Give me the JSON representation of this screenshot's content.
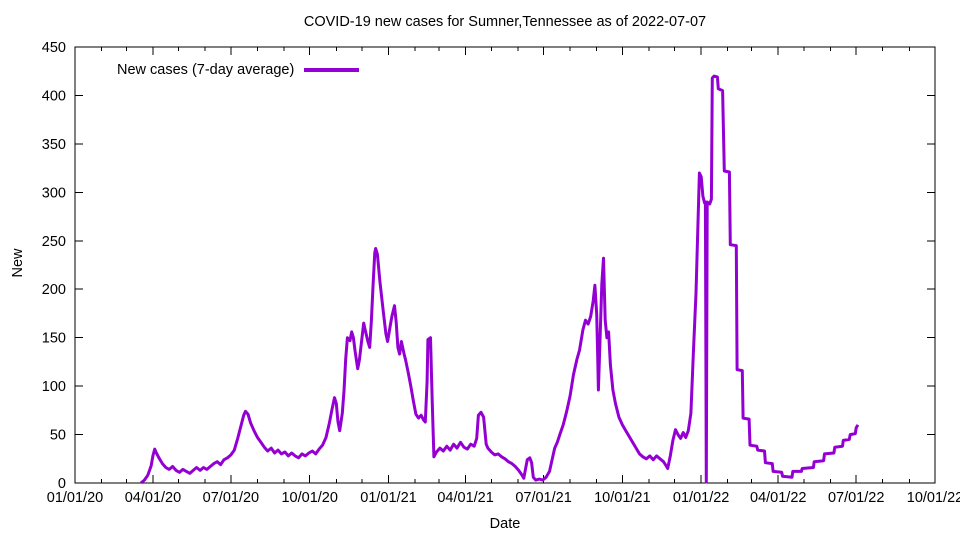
{
  "chart_data": {
    "type": "line",
    "title": "COVID-19 new cases for Sumner,Tennessee as of 2022-07-07",
    "xlabel": "Date",
    "ylabel": "New",
    "grid": false,
    "legend_position": "top-left-inside",
    "x_range": [
      "2020-01-01",
      "2022-10-01"
    ],
    "ylim": [
      0,
      450
    ],
    "y_ticks": [
      {
        "value": 0,
        "label": "0"
      },
      {
        "value": 50,
        "label": "50"
      },
      {
        "value": 100,
        "label": "100"
      },
      {
        "value": 150,
        "label": "150"
      },
      {
        "value": 200,
        "label": "200"
      },
      {
        "value": 250,
        "label": "250"
      },
      {
        "value": 300,
        "label": "300"
      },
      {
        "value": 350,
        "label": "350"
      },
      {
        "value": 400,
        "label": "400"
      },
      {
        "value": 450,
        "label": "450"
      }
    ],
    "x_ticks": [
      {
        "date": "2020-01-01",
        "label": "01/01/20"
      },
      {
        "date": "2020-04-01",
        "label": "04/01/20"
      },
      {
        "date": "2020-07-01",
        "label": "07/01/20"
      },
      {
        "date": "2020-10-01",
        "label": "10/01/20"
      },
      {
        "date": "2021-01-01",
        "label": "01/01/21"
      },
      {
        "date": "2021-04-01",
        "label": "04/01/21"
      },
      {
        "date": "2021-07-01",
        "label": "07/01/21"
      },
      {
        "date": "2021-10-01",
        "label": "10/01/21"
      },
      {
        "date": "2022-01-01",
        "label": "01/01/22"
      },
      {
        "date": "2022-04-01",
        "label": "04/01/22"
      },
      {
        "date": "2022-07-01",
        "label": "07/01/22"
      },
      {
        "date": "2022-10-01",
        "label": "10/01/22"
      }
    ],
    "series": [
      {
        "name": "New cases (7-day average)",
        "color": "#9400d3",
        "points": [
          [
            "2020-03-18",
            0
          ],
          [
            "2020-03-22",
            3
          ],
          [
            "2020-03-26",
            8
          ],
          [
            "2020-03-30",
            18
          ],
          [
            "2020-04-01",
            28
          ],
          [
            "2020-04-03",
            35
          ],
          [
            "2020-04-05",
            31
          ],
          [
            "2020-04-08",
            26
          ],
          [
            "2020-04-12",
            20
          ],
          [
            "2020-04-16",
            16
          ],
          [
            "2020-04-20",
            14
          ],
          [
            "2020-04-24",
            17
          ],
          [
            "2020-04-28",
            13
          ],
          [
            "2020-05-02",
            11
          ],
          [
            "2020-05-06",
            14
          ],
          [
            "2020-05-10",
            12
          ],
          [
            "2020-05-14",
            10
          ],
          [
            "2020-05-18",
            13
          ],
          [
            "2020-05-22",
            16
          ],
          [
            "2020-05-26",
            13
          ],
          [
            "2020-05-30",
            16
          ],
          [
            "2020-06-03",
            14
          ],
          [
            "2020-06-07",
            17
          ],
          [
            "2020-06-11",
            20
          ],
          [
            "2020-06-15",
            22
          ],
          [
            "2020-06-19",
            19
          ],
          [
            "2020-06-23",
            24
          ],
          [
            "2020-06-27",
            26
          ],
          [
            "2020-07-01",
            29
          ],
          [
            "2020-07-05",
            34
          ],
          [
            "2020-07-09",
            46
          ],
          [
            "2020-07-13",
            60
          ],
          [
            "2020-07-16",
            70
          ],
          [
            "2020-07-18",
            74
          ],
          [
            "2020-07-21",
            71
          ],
          [
            "2020-07-24",
            62
          ],
          [
            "2020-07-28",
            54
          ],
          [
            "2020-08-01",
            47
          ],
          [
            "2020-08-05",
            42
          ],
          [
            "2020-08-09",
            37
          ],
          [
            "2020-08-13",
            33
          ],
          [
            "2020-08-17",
            36
          ],
          [
            "2020-08-21",
            31
          ],
          [
            "2020-08-25",
            34
          ],
          [
            "2020-08-29",
            30
          ],
          [
            "2020-09-02",
            32
          ],
          [
            "2020-09-06",
            28
          ],
          [
            "2020-09-10",
            31
          ],
          [
            "2020-09-14",
            28
          ],
          [
            "2020-09-18",
            26
          ],
          [
            "2020-09-22",
            30
          ],
          [
            "2020-09-26",
            28
          ],
          [
            "2020-09-30",
            31
          ],
          [
            "2020-10-04",
            33
          ],
          [
            "2020-10-08",
            30
          ],
          [
            "2020-10-12",
            35
          ],
          [
            "2020-10-16",
            39
          ],
          [
            "2020-10-20",
            47
          ],
          [
            "2020-10-24",
            62
          ],
          [
            "2020-10-27",
            76
          ],
          [
            "2020-10-30",
            88
          ],
          [
            "2020-11-01",
            82
          ],
          [
            "2020-11-03",
            63
          ],
          [
            "2020-11-05",
            54
          ],
          [
            "2020-11-08",
            72
          ],
          [
            "2020-11-10",
            95
          ],
          [
            "2020-11-12",
            128
          ],
          [
            "2020-11-14",
            150
          ],
          [
            "2020-11-17",
            147
          ],
          [
            "2020-11-19",
            156
          ],
          [
            "2020-11-21",
            150
          ],
          [
            "2020-11-23",
            136
          ],
          [
            "2020-11-26",
            118
          ],
          [
            "2020-11-28",
            127
          ],
          [
            "2020-12-01",
            150
          ],
          [
            "2020-12-03",
            165
          ],
          [
            "2020-12-05",
            157
          ],
          [
            "2020-12-08",
            146
          ],
          [
            "2020-12-10",
            140
          ],
          [
            "2020-12-12",
            168
          ],
          [
            "2020-12-14",
            205
          ],
          [
            "2020-12-16",
            238
          ],
          [
            "2020-12-17",
            242
          ],
          [
            "2020-12-19",
            236
          ],
          [
            "2020-12-22",
            208
          ],
          [
            "2020-12-26",
            176
          ],
          [
            "2020-12-29",
            154
          ],
          [
            "2020-12-31",
            146
          ],
          [
            "2021-01-03",
            162
          ],
          [
            "2021-01-05",
            172
          ],
          [
            "2021-01-08",
            183
          ],
          [
            "2021-01-10",
            166
          ],
          [
            "2021-01-12",
            140
          ],
          [
            "2021-01-14",
            133
          ],
          [
            "2021-01-16",
            146
          ],
          [
            "2021-01-19",
            134
          ],
          [
            "2021-01-21",
            127
          ],
          [
            "2021-01-24",
            114
          ],
          [
            "2021-01-27",
            100
          ],
          [
            "2021-01-30",
            85
          ],
          [
            "2021-02-02",
            71
          ],
          [
            "2021-02-05",
            67
          ],
          [
            "2021-02-08",
            70
          ],
          [
            "2021-02-11",
            65
          ],
          [
            "2021-02-13",
            63
          ],
          [
            "2021-02-15",
            105
          ],
          [
            "2021-02-16",
            148
          ],
          [
            "2021-02-19",
            150
          ],
          [
            "2021-02-21",
            85
          ],
          [
            "2021-02-23",
            27
          ],
          [
            "2021-02-26",
            32
          ],
          [
            "2021-03-02",
            36
          ],
          [
            "2021-03-06",
            33
          ],
          [
            "2021-03-10",
            38
          ],
          [
            "2021-03-14",
            34
          ],
          [
            "2021-03-18",
            40
          ],
          [
            "2021-03-22",
            36
          ],
          [
            "2021-03-26",
            42
          ],
          [
            "2021-03-30",
            37
          ],
          [
            "2021-04-03",
            35
          ],
          [
            "2021-04-07",
            40
          ],
          [
            "2021-04-11",
            38
          ],
          [
            "2021-04-14",
            46
          ],
          [
            "2021-04-16",
            70
          ],
          [
            "2021-04-19",
            73
          ],
          [
            "2021-04-22",
            68
          ],
          [
            "2021-04-25",
            40
          ],
          [
            "2021-04-27",
            36
          ],
          [
            "2021-05-01",
            32
          ],
          [
            "2021-05-05",
            29
          ],
          [
            "2021-05-09",
            30
          ],
          [
            "2021-05-13",
            27
          ],
          [
            "2021-05-17",
            25
          ],
          [
            "2021-05-21",
            22
          ],
          [
            "2021-05-25",
            20
          ],
          [
            "2021-05-29",
            17
          ],
          [
            "2021-06-02",
            13
          ],
          [
            "2021-06-06",
            8
          ],
          [
            "2021-06-08",
            5
          ],
          [
            "2021-06-10",
            15
          ],
          [
            "2021-06-12",
            24
          ],
          [
            "2021-06-15",
            26
          ],
          [
            "2021-06-17",
            21
          ],
          [
            "2021-06-19",
            6
          ],
          [
            "2021-06-22",
            3
          ],
          [
            "2021-06-26",
            4
          ],
          [
            "2021-06-30",
            3
          ],
          [
            "2021-07-04",
            6
          ],
          [
            "2021-07-08",
            12
          ],
          [
            "2021-07-11",
            24
          ],
          [
            "2021-07-14",
            36
          ],
          [
            "2021-07-17",
            42
          ],
          [
            "2021-07-20",
            50
          ],
          [
            "2021-07-24",
            60
          ],
          [
            "2021-07-28",
            74
          ],
          [
            "2021-08-01",
            90
          ],
          [
            "2021-08-05",
            112
          ],
          [
            "2021-08-09",
            128
          ],
          [
            "2021-08-12",
            137
          ],
          [
            "2021-08-16",
            158
          ],
          [
            "2021-08-19",
            168
          ],
          [
            "2021-08-22",
            164
          ],
          [
            "2021-08-25",
            172
          ],
          [
            "2021-08-28",
            188
          ],
          [
            "2021-08-30",
            204
          ],
          [
            "2021-09-01",
            174
          ],
          [
            "2021-09-02",
            140
          ],
          [
            "2021-09-03",
            96
          ],
          [
            "2021-09-05",
            150
          ],
          [
            "2021-09-07",
            205
          ],
          [
            "2021-09-09",
            232
          ],
          [
            "2021-09-11",
            168
          ],
          [
            "2021-09-13",
            150
          ],
          [
            "2021-09-15",
            156
          ],
          [
            "2021-09-17",
            122
          ],
          [
            "2021-09-20",
            96
          ],
          [
            "2021-09-23",
            82
          ],
          [
            "2021-09-27",
            68
          ],
          [
            "2021-10-01",
            60
          ],
          [
            "2021-10-05",
            54
          ],
          [
            "2021-10-09",
            48
          ],
          [
            "2021-10-13",
            42
          ],
          [
            "2021-10-17",
            36
          ],
          [
            "2021-10-21",
            30
          ],
          [
            "2021-10-25",
            27
          ],
          [
            "2021-10-29",
            25
          ],
          [
            "2021-11-02",
            28
          ],
          [
            "2021-11-06",
            24
          ],
          [
            "2021-11-10",
            28
          ],
          [
            "2021-11-14",
            25
          ],
          [
            "2021-11-18",
            22
          ],
          [
            "2021-11-21",
            18
          ],
          [
            "2021-11-23",
            15
          ],
          [
            "2021-11-26",
            28
          ],
          [
            "2021-11-29",
            44
          ],
          [
            "2021-12-02",
            55
          ],
          [
            "2021-12-05",
            50
          ],
          [
            "2021-12-08",
            46
          ],
          [
            "2021-12-11",
            52
          ],
          [
            "2021-12-14",
            47
          ],
          [
            "2021-12-17",
            54
          ],
          [
            "2021-12-20",
            72
          ],
          [
            "2021-12-23",
            135
          ],
          [
            "2021-12-26",
            196
          ],
          [
            "2021-12-28",
            258
          ],
          [
            "2021-12-30",
            320
          ],
          [
            "2022-01-01",
            316
          ],
          [
            "2022-01-03",
            296
          ],
          [
            "2022-01-05",
            289
          ],
          [
            "2022-01-06",
            290
          ],
          [
            "2022-01-07",
            1
          ],
          [
            "2022-01-08",
            290
          ],
          [
            "2022-01-11",
            288
          ],
          [
            "2022-01-13",
            293
          ],
          [
            "2022-01-14",
            418
          ],
          [
            "2022-01-16",
            420
          ],
          [
            "2022-01-20",
            419
          ],
          [
            "2022-01-21",
            407
          ],
          [
            "2022-01-26",
            405
          ],
          [
            "2022-01-28",
            322
          ],
          [
            "2022-02-03",
            321
          ],
          [
            "2022-02-04",
            246
          ],
          [
            "2022-02-11",
            245
          ],
          [
            "2022-02-12",
            117
          ],
          [
            "2022-02-18",
            116
          ],
          [
            "2022-02-19",
            67
          ],
          [
            "2022-02-26",
            66
          ],
          [
            "2022-02-27",
            39
          ],
          [
            "2022-03-07",
            38
          ],
          [
            "2022-03-08",
            34
          ],
          [
            "2022-03-16",
            33
          ],
          [
            "2022-03-17",
            21
          ],
          [
            "2022-03-25",
            20
          ],
          [
            "2022-03-26",
            12
          ],
          [
            "2022-04-05",
            11
          ],
          [
            "2022-04-06",
            7
          ],
          [
            "2022-04-17",
            6
          ],
          [
            "2022-04-18",
            12
          ],
          [
            "2022-04-28",
            12
          ],
          [
            "2022-04-29",
            15
          ],
          [
            "2022-05-12",
            16
          ],
          [
            "2022-05-13",
            22
          ],
          [
            "2022-05-24",
            23
          ],
          [
            "2022-05-25",
            30
          ],
          [
            "2022-06-05",
            31
          ],
          [
            "2022-06-06",
            37
          ],
          [
            "2022-06-15",
            38
          ],
          [
            "2022-06-16",
            44
          ],
          [
            "2022-06-23",
            45
          ],
          [
            "2022-06-24",
            50
          ],
          [
            "2022-06-30",
            51
          ],
          [
            "2022-07-01",
            57
          ],
          [
            "2022-07-03",
            60
          ]
        ]
      }
    ]
  },
  "colors": {
    "line": "#9400d3",
    "axis": "#000000",
    "background": "#ffffff",
    "text": "#000000"
  }
}
